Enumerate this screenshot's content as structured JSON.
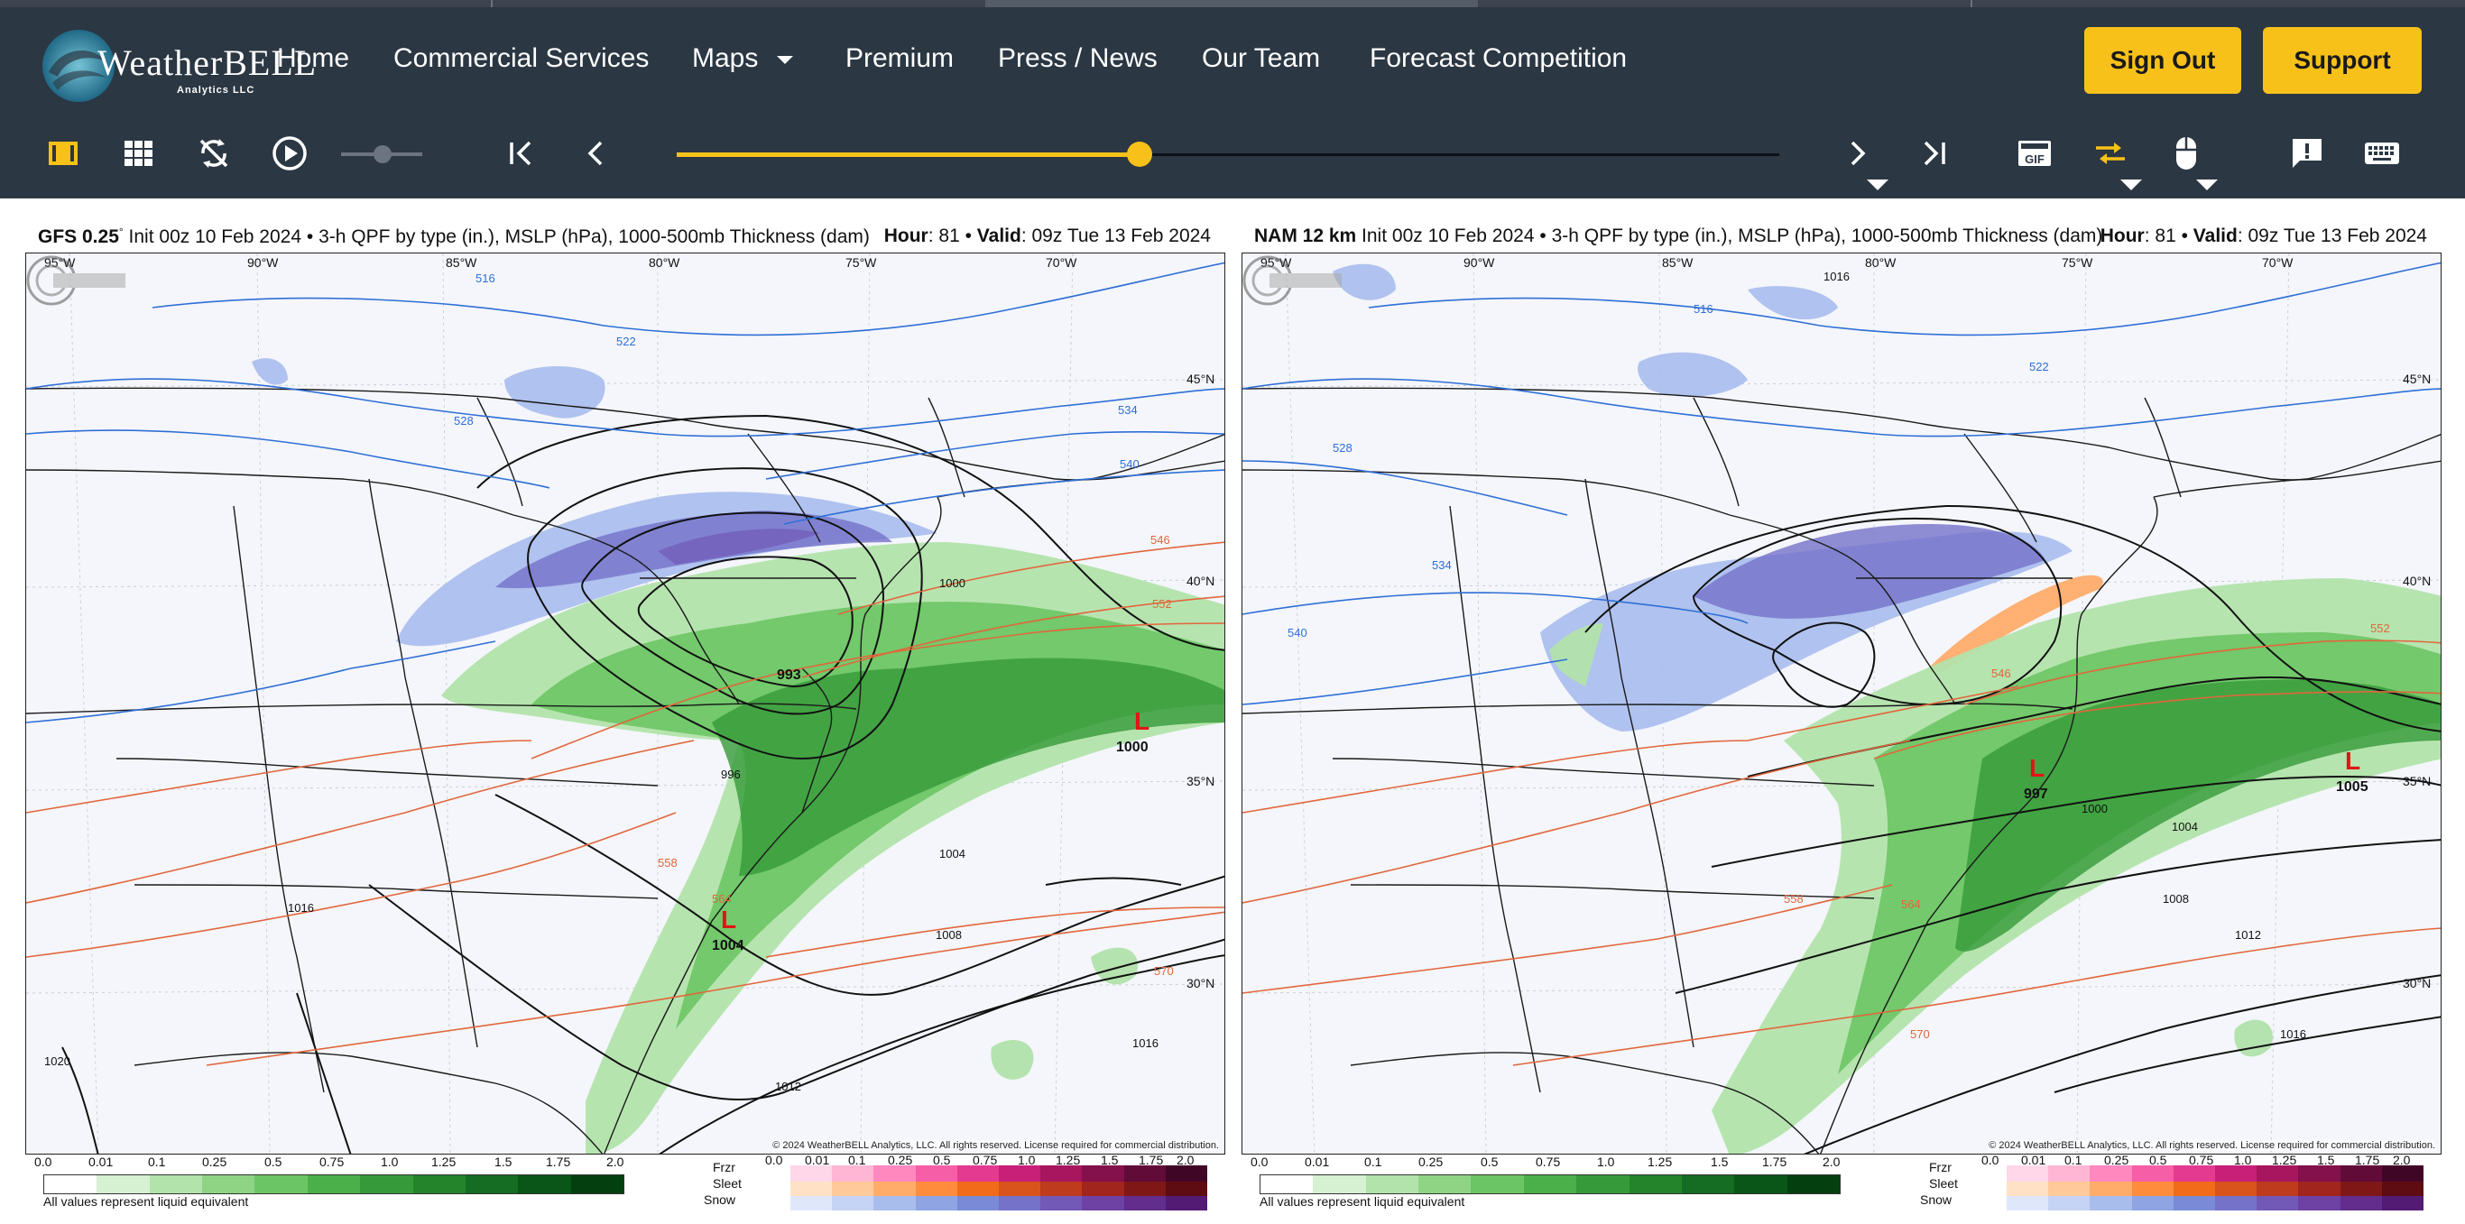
{
  "colors": {
    "nav_bg": "#2b3743",
    "accent": "#f8c11a",
    "low_marker": "#e01515"
  },
  "brand": {
    "name": "WeatherBELL",
    "sub": "Analytics LLC"
  },
  "nav": {
    "home": "Home",
    "commercial": "Commercial Services",
    "maps": "Maps",
    "premium": "Premium",
    "press": "Press / News",
    "team": "Our Team",
    "forecast": "Forecast Competition",
    "sign_out": "Sign Out",
    "support": "Support"
  },
  "toolbar": {
    "icons": [
      "single-view-icon",
      "grid-view-icon",
      "sync-off-icon",
      "play-icon",
      "speed-slider",
      "first-frame-icon",
      "prev-frame-icon",
      "next-frame-icon",
      "last-frame-icon",
      "gif-icon",
      "compare-icon",
      "mouse-icon",
      "feedback-icon",
      "keyboard-icon"
    ],
    "gif_label": "GIF",
    "timeline_progress": 0.42
  },
  "left_panel": {
    "model": "GFS 0.25",
    "degree": "°",
    "init": "Init 00z 10 Feb 2024",
    "product": "3-h QPF by type (in.), MSLP (hPa), 1000-500mb Thickness (dam)",
    "hour_label": "Hour",
    "hour": "81",
    "valid_label": "Valid",
    "valid": "09z Tue 13 Feb 2024",
    "lon_labels": [
      "95°W",
      "90°W",
      "85°W",
      "80°W",
      "75°W",
      "70°W"
    ],
    "lat_labels": [
      "45°N",
      "40°N",
      "35°N",
      "30°N"
    ],
    "lows": [
      {
        "mark": "L",
        "value": "1000"
      },
      {
        "mark": "L",
        "value": "1004"
      }
    ],
    "center_value": "993",
    "isobars": [
      "1000",
      "996",
      "1004",
      "1008",
      "1012",
      "1016",
      "1016",
      "1020"
    ],
    "thickness": [
      "516",
      "522",
      "528",
      "534",
      "540",
      "546",
      "552",
      "558",
      "564",
      "570"
    ],
    "copyright": "© 2024 WeatherBELL Analytics, LLC. All rights reserved. License required for commercial distribution."
  },
  "right_panel": {
    "model": "NAM 12 km",
    "init": "Init 00z 10 Feb 2024",
    "product": "3-h QPF by type (in.), MSLP (hPa), 1000-500mb Thickness (dam)",
    "hour_label": "Hour",
    "hour": "81",
    "valid_label": "Valid",
    "valid": "09z Tue 13 Feb 2024",
    "lon_labels": [
      "95°W",
      "90°W",
      "85°W",
      "80°W",
      "75°W",
      "70°W"
    ],
    "lat_labels": [
      "45°N",
      "40°N",
      "35°N",
      "30°N"
    ],
    "lows": [
      {
        "mark": "L",
        "value": "997"
      },
      {
        "mark": "L",
        "value": "1005"
      }
    ],
    "isobars": [
      "1000",
      "1004",
      "1008",
      "1012",
      "1016",
      "1016"
    ],
    "thickness": [
      "516",
      "522",
      "528",
      "534",
      "540",
      "546",
      "552",
      "558",
      "564",
      "570"
    ],
    "copyright": "© 2024 WeatherBELL Analytics, LLC. All rights reserved. License required for commercial distribution."
  },
  "legend": {
    "rain_ticks": [
      "0.0",
      "0.01",
      "0.1",
      "0.25",
      "0.5",
      "0.75",
      "1.0",
      "1.25",
      "1.5",
      "1.75",
      "2.0"
    ],
    "rain_note": "All values represent liquid equivalent",
    "type_labels": [
      "Frzr",
      "Sleet",
      "Snow"
    ],
    "type_ticks": [
      "0.0",
      "0.01",
      "0.1",
      "0.25",
      "0.5",
      "0.75",
      "1.0",
      "1.25",
      "1.5",
      "1.75",
      "2.0"
    ],
    "rain_colors": [
      "#ffffff",
      "#d6f0d2",
      "#b2e3ab",
      "#8fd485",
      "#6cc564",
      "#4bb04a",
      "#369a3a",
      "#23842c",
      "#146d22",
      "#0a5618",
      "#04400f"
    ],
    "frzr_colors": [
      "#ffd7e8",
      "#ffb6d5",
      "#ff88bf",
      "#f75ea8",
      "#e43a8f",
      "#c81f78",
      "#a7165f",
      "#84104c",
      "#610b38",
      "#400626"
    ],
    "sleet_colors": [
      "#ffe2c6",
      "#ffc999",
      "#ffac6a",
      "#ff8c3c",
      "#f26b18",
      "#d9531c",
      "#bf3b1d",
      "#a1251c",
      "#7f1717",
      "#5e0c12"
    ],
    "snow_colors": [
      "#dfe8fb",
      "#c5d3f4",
      "#a9bded",
      "#8ea4e3",
      "#7a8ad6",
      "#7472c9",
      "#7259b8",
      "#6d42a4",
      "#622d8d",
      "#531b73"
    ]
  }
}
